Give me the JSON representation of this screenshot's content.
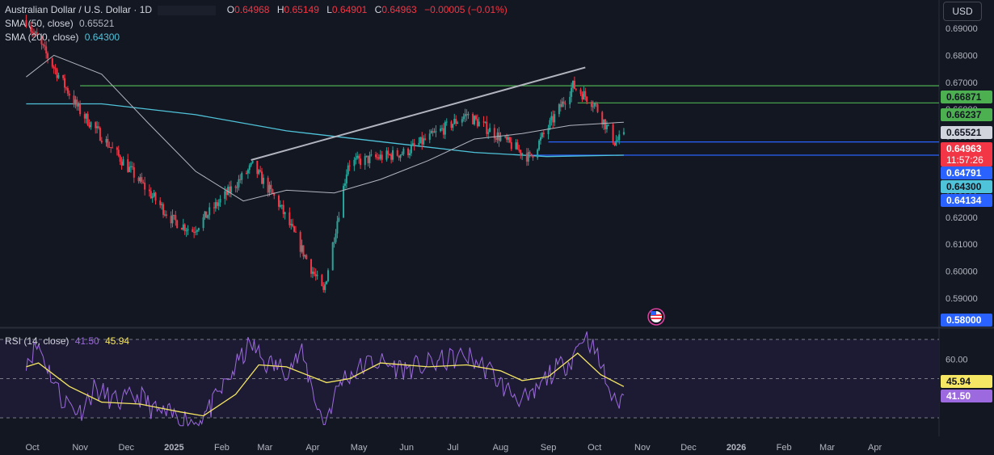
{
  "header": {
    "symbol_title": "Australian Dollar / U.S. Dollar · 1D",
    "ohlc": [
      {
        "key": "O",
        "value": "0.64968"
      },
      {
        "key": "H",
        "value": "0.65149"
      },
      {
        "key": "L",
        "value": "0.64901"
      },
      {
        "key": "C",
        "value": "0.64963"
      }
    ],
    "change": "−0.00005 (−0.01%)",
    "currency_button": "USD"
  },
  "indicators": {
    "sma50": {
      "label": "SMA (50, close)",
      "value": "0.65521",
      "color": "#d1d4dc"
    },
    "sma200": {
      "label": "SMA (200, close)",
      "value": "0.64300",
      "color": "#4fc3d9"
    },
    "rsi": {
      "label": "RSI (14, close)",
      "value": "41.50",
      "ma_value": "45.94",
      "color": "#9c6ade",
      "ma_color": "#f5e663"
    }
  },
  "colors": {
    "background": "#131722",
    "up_candle": "#26a69a",
    "down_candle": "#f23645",
    "green_level": "#4caf50",
    "blue_level": "#2962ff",
    "trendline": "#b2b5be",
    "rsi_band": "#1d1b33"
  },
  "chart_data": [
    {
      "type": "candlestick",
      "title": "Australian Dollar / U.S. Dollar · 1D",
      "x_ticks": [
        "Oct",
        "Nov",
        "Dec",
        "2025",
        "Feb",
        "Mar",
        "Apr",
        "May",
        "Jun",
        "Jul",
        "Aug",
        "Sep",
        "Oct",
        "Nov",
        "Dec",
        "2026",
        "Feb",
        "Mar",
        "Apr"
      ],
      "y_ticks": [
        "0.69000",
        "0.68000",
        "0.67000",
        "0.66000",
        "0.65000",
        "0.64000",
        "0.63000",
        "0.62000",
        "0.61000",
        "0.60000",
        "0.59000"
      ],
      "ylim": [
        0.5795,
        0.7005
      ],
      "key_points": {
        "x": [
          "2024-09-27",
          "2024-10-31",
          "2024-12-31",
          "2025-01-13",
          "2025-02-21",
          "2025-03-10",
          "2025-04-08",
          "2025-04-24",
          "2025-05-31",
          "2025-07-10",
          "2025-08-20",
          "2025-09-17",
          "2025-10-01",
          "2025-10-14",
          "2025-10-20"
        ],
        "close": [
          0.693,
          0.66,
          0.619,
          0.615,
          0.639,
          0.625,
          0.592,
          0.64,
          0.644,
          0.658,
          0.642,
          0.6687,
          0.662,
          0.648,
          0.6496
        ]
      },
      "sma50": {
        "x": [
          "2024-09-27",
          "2024-10-15",
          "2024-11-15",
          "2024-12-15",
          "2025-01-15",
          "2025-02-15",
          "2025-03-15",
          "2025-04-15",
          "2025-05-15",
          "2025-06-15",
          "2025-07-15",
          "2025-08-15",
          "2025-09-15",
          "2025-10-20"
        ],
        "y": [
          0.672,
          0.68,
          0.673,
          0.655,
          0.637,
          0.626,
          0.63,
          0.629,
          0.634,
          0.641,
          0.649,
          0.651,
          0.654,
          0.6552
        ]
      },
      "sma200": {
        "x": [
          "2024-09-27",
          "2024-11-15",
          "2025-01-15",
          "2025-03-15",
          "2025-05-15",
          "2025-07-15",
          "2025-08-31",
          "2025-10-20"
        ],
        "y": [
          0.662,
          0.662,
          0.658,
          0.652,
          0.648,
          0.644,
          0.6425,
          0.643
        ]
      },
      "trendline": {
        "x": [
          "2025-02-20",
          "2025-09-25"
        ],
        "y": [
          0.6412,
          0.6755
        ]
      },
      "levels": [
        {
          "value": "0.66871",
          "label": "0.66871",
          "color": "#4caf50",
          "start": "2024-11-01"
        },
        {
          "value": "0.66237",
          "label": "0.66237",
          "color": "#4caf50",
          "start": "2025-09-20"
        },
        {
          "value": "0.64791",
          "label": "0.64791",
          "color": "#2962ff",
          "start": "2025-09-01"
        },
        {
          "value": "0.64300",
          "label": "0.64300",
          "color": "#2962ff",
          "start": "2025-08-21"
        }
      ],
      "price_labels": [
        {
          "text": "0.66871",
          "value": 0.66871,
          "bg": "#4caf50",
          "fg": "#131722"
        },
        {
          "text": "0.66237",
          "value": 0.66237,
          "bg": "#4caf50",
          "fg": "#131722"
        },
        {
          "text": "0.65521",
          "value": 0.65521,
          "bg": "#d1d4dc",
          "fg": "#131722"
        },
        {
          "text": "0.64963",
          "sub": "11:57:26",
          "value": 0.64963,
          "bg": "#f23645",
          "fg": "#ffffff"
        },
        {
          "text": "0.64791",
          "value": 0.64791,
          "bg": "#2962ff",
          "fg": "#ffffff"
        },
        {
          "text": "0.64300",
          "value": 0.643,
          "bg": "#4fc3d9",
          "fg": "#131722"
        },
        {
          "text": "0.64134",
          "value": 0.64134,
          "bg": "#2962ff",
          "fg": "#ffffff"
        },
        {
          "text": "0.58000",
          "value": 0.58,
          "bg": "#2962ff",
          "fg": "#ffffff"
        }
      ]
    },
    {
      "type": "line",
      "title": "RSI (14, close)",
      "y_ticks": [
        "60.00"
      ],
      "bands": [
        70,
        50,
        30
      ],
      "ylim": [
        25,
        75
      ],
      "series": [
        {
          "name": "RSI",
          "x": [
            "2024-09-27",
            "2024-10-05",
            "2024-10-20",
            "2024-11-01",
            "2024-11-10",
            "2024-11-25",
            "2024-12-10",
            "2024-12-20",
            "2025-01-05",
            "2025-01-15",
            "2025-01-25",
            "2025-02-10",
            "2025-02-20",
            "2025-03-01",
            "2025-03-15",
            "2025-03-25",
            "2025-04-08",
            "2025-04-20",
            "2025-05-10",
            "2025-05-31",
            "2025-06-20",
            "2025-07-10",
            "2025-07-25",
            "2025-08-05",
            "2025-08-20",
            "2025-09-01",
            "2025-09-15",
            "2025-09-25",
            "2025-10-05",
            "2025-10-14",
            "2025-10-20"
          ],
          "y": [
            60,
            67,
            40,
            33,
            45,
            38,
            41,
            33,
            30,
            28,
            35,
            56,
            68,
            58,
            55,
            62,
            27,
            50,
            59,
            55,
            58,
            62,
            54,
            44,
            38,
            52,
            59,
            74,
            57,
            37,
            41.5
          ]
        },
        {
          "name": "RSI-based MA",
          "x": [
            "2024-09-27",
            "2024-10-05",
            "2024-10-25",
            "2024-11-15",
            "2024-12-10",
            "2025-01-05",
            "2025-01-20",
            "2025-02-10",
            "2025-02-25",
            "2025-03-15",
            "2025-04-10",
            "2025-04-25",
            "2025-05-15",
            "2025-06-15",
            "2025-07-10",
            "2025-08-01",
            "2025-08-15",
            "2025-09-01",
            "2025-09-20",
            "2025-10-05",
            "2025-10-20"
          ],
          "y": [
            56,
            58,
            46,
            38,
            37,
            33,
            31,
            42,
            57,
            56,
            48,
            50,
            58,
            56,
            57,
            54,
            49,
            51,
            63,
            52,
            45.94
          ]
        }
      ],
      "price_labels": [
        {
          "text": "45.94",
          "value": 45.94,
          "bg": "#f5e663",
          "fg": "#131722"
        },
        {
          "text": "41.50",
          "value": 41.5,
          "bg": "#9c6ade",
          "fg": "#ffffff"
        }
      ]
    }
  ]
}
